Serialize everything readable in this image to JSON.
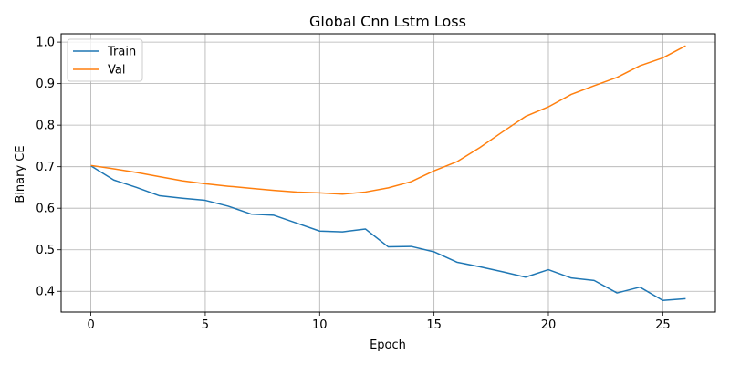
{
  "chart_data": {
    "type": "line",
    "title": "Global Cnn Lstm Loss",
    "xlabel": "Epoch",
    "ylabel": "Binary CE",
    "xlim": [
      -1.3,
      27.3
    ],
    "ylim": [
      0.35,
      1.02
    ],
    "xticks": [
      0,
      5,
      10,
      15,
      20,
      25
    ],
    "yticks": [
      0.4,
      0.5,
      0.6,
      0.7,
      0.8,
      0.9,
      1.0
    ],
    "grid": true,
    "legend_position": "upper-left",
    "x": [
      0,
      1,
      2,
      3,
      4,
      5,
      6,
      7,
      8,
      9,
      10,
      11,
      12,
      13,
      14,
      15,
      16,
      17,
      18,
      19,
      20,
      21,
      22,
      23,
      24,
      25,
      26
    ],
    "series": [
      {
        "name": "Train",
        "color": "#1f77b4",
        "values": [
          0.702,
          0.668,
          0.65,
          0.63,
          0.624,
          0.619,
          0.605,
          0.586,
          0.583,
          0.564,
          0.545,
          0.543,
          0.55,
          0.507,
          0.508,
          0.495,
          0.47,
          0.459,
          0.447,
          0.434,
          0.452,
          0.432,
          0.426,
          0.396,
          0.41,
          0.378,
          0.382
        ]
      },
      {
        "name": "Val",
        "color": "#ff7f0e",
        "values": [
          0.703,
          0.695,
          0.686,
          0.676,
          0.666,
          0.659,
          0.653,
          0.648,
          0.643,
          0.639,
          0.637,
          0.634,
          0.639,
          0.649,
          0.664,
          0.69,
          0.712,
          0.746,
          0.784,
          0.821,
          0.844,
          0.874,
          0.895,
          0.915,
          0.943,
          0.962,
          0.991
        ]
      }
    ]
  }
}
